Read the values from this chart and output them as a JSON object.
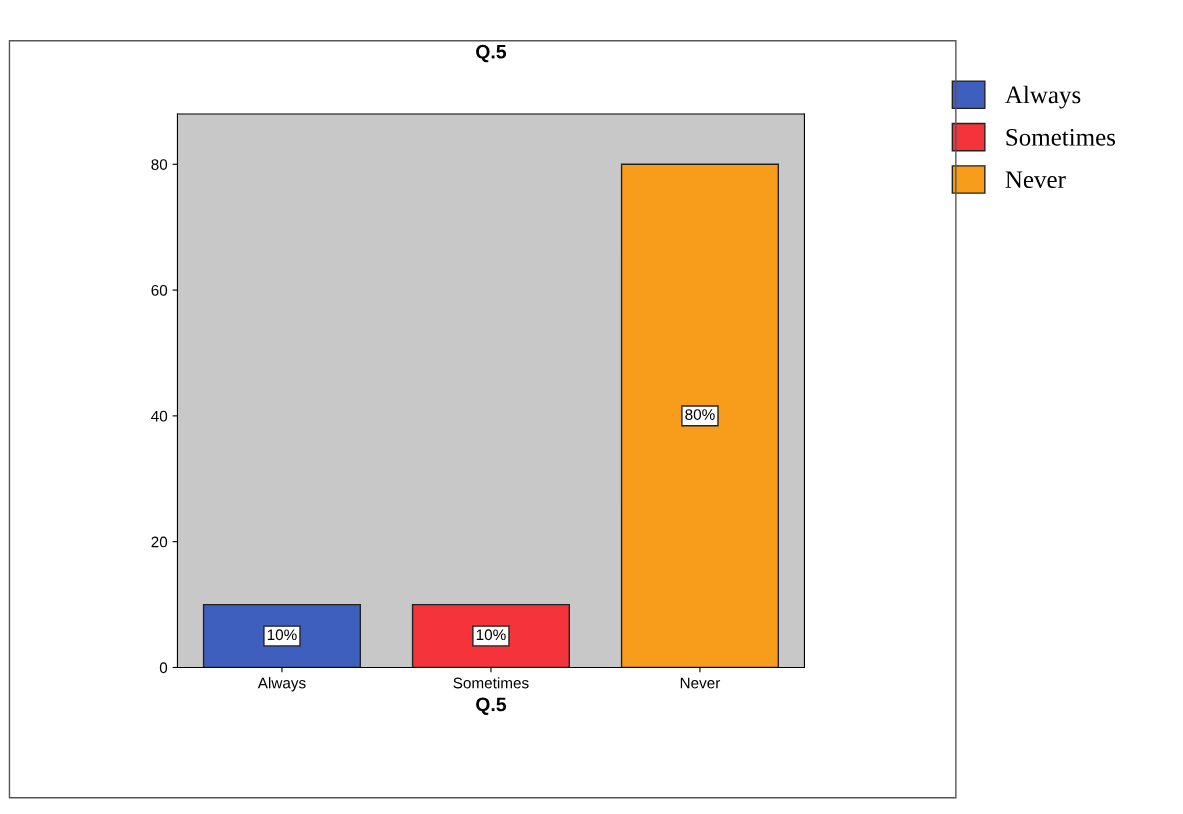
{
  "chart_data": {
    "type": "bar",
    "title": "Q.5",
    "xlabel": "Q.5",
    "categories": [
      "Always",
      "Sometimes",
      "Never"
    ],
    "series": [
      {
        "name": "Always",
        "color": "#3f5fbf",
        "values": [
          10,
          null,
          null
        ],
        "value_labels": [
          "10%",
          null,
          null
        ]
      },
      {
        "name": "Sometimes",
        "color": "#f5333a",
        "values": [
          null,
          10,
          null
        ],
        "value_labels": [
          null,
          "10%",
          null
        ]
      },
      {
        "name": "Never",
        "color": "#f89c1c",
        "values": [
          null,
          null,
          80
        ],
        "value_labels": [
          null,
          null,
          "80%"
        ]
      }
    ],
    "ylim": [
      0,
      88
    ],
    "yticks": [
      0,
      20,
      40,
      60,
      80
    ],
    "grid": false,
    "legend": "top right"
  }
}
